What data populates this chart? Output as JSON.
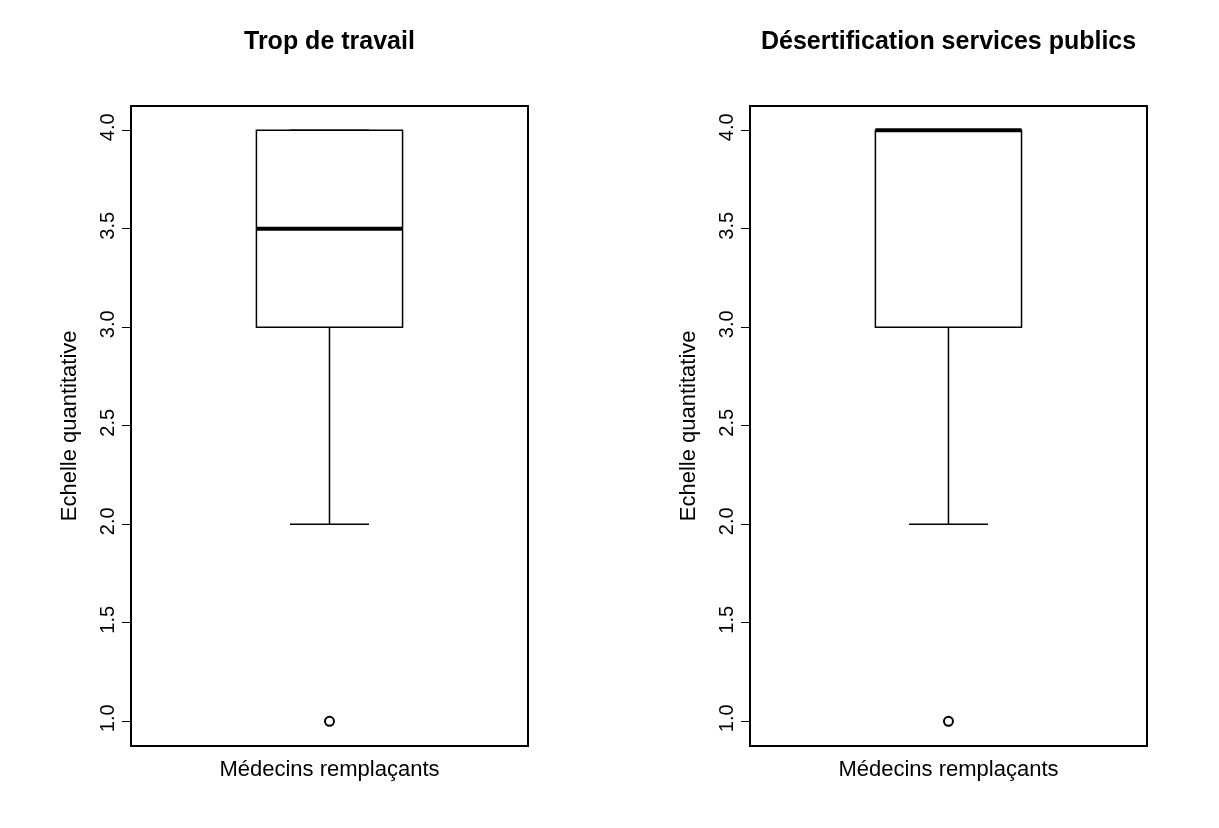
{
  "chart_data": [
    {
      "type": "box",
      "title": "Trop de travail",
      "xlabel": "Médecins remplaçants",
      "ylabel": "Echelle quantitative",
      "categories": [
        null
      ],
      "boxes": [
        {
          "low": 2,
          "q1": 3,
          "median": 3.5,
          "q3": 4,
          "high": 4,
          "outliers": [
            1
          ]
        }
      ],
      "color": "#000000",
      "ylim": [
        0.88,
        4.12
      ],
      "yticks": [
        {
          "value": 1,
          "label": "1.0"
        },
        {
          "value": 1.5,
          "label": "1.5"
        },
        {
          "value": 2,
          "label": "2.0"
        },
        {
          "value": 2.5,
          "label": "2.5"
        },
        {
          "value": 3,
          "label": "3.0"
        },
        {
          "value": 3.5,
          "label": "3.5"
        },
        {
          "value": 4,
          "label": "4.0"
        }
      ]
    },
    {
      "type": "box",
      "title": "Désertification services publics",
      "xlabel": "Médecins remplaçants",
      "ylabel": "Echelle quantitative",
      "categories": [
        null
      ],
      "boxes": [
        {
          "low": 2,
          "q1": 3,
          "median": 4,
          "q3": 4,
          "high": 4,
          "outliers": [
            1
          ]
        }
      ],
      "color": "#000000",
      "ylim": [
        0.88,
        4.12
      ],
      "yticks": [
        {
          "value": 1,
          "label": "1.0"
        },
        {
          "value": 1.5,
          "label": "1.5"
        },
        {
          "value": 2,
          "label": "2.0"
        },
        {
          "value": 2.5,
          "label": "2.5"
        },
        {
          "value": 3,
          "label": "3.0"
        },
        {
          "value": 3.5,
          "label": "3.5"
        },
        {
          "value": 4,
          "label": "4.0"
        }
      ]
    }
  ]
}
